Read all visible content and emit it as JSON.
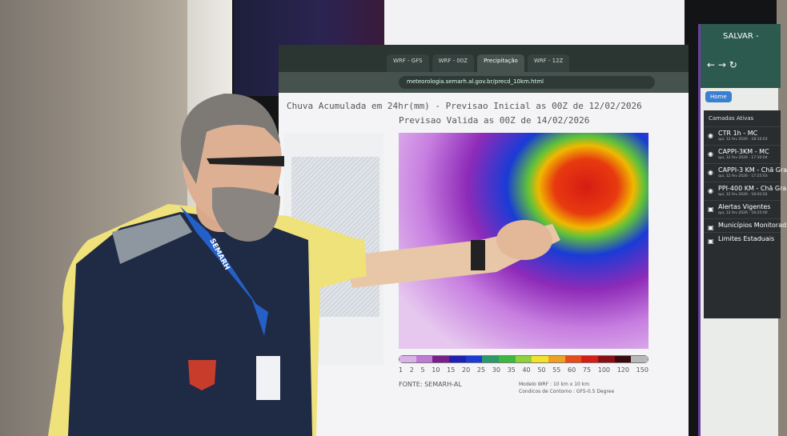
{
  "main_browser": {
    "tabs": [
      "WRF - GFS",
      "WRF - 00Z",
      "Precipitação",
      "WRF - 12Z"
    ],
    "url": "meteorologia.semarh.al.gov.br/precd_10km.html",
    "chart_title_line1": "Chuva Acumulada em 24hr(mm) - Previsao Inicial as 00Z de 12/02/2026",
    "chart_title_line2": "Previsao Valida as 00Z de 14/02/2026",
    "colorbar_ticks": [
      "1",
      "2",
      "5",
      "10",
      "15",
      "20",
      "25",
      "30",
      "35",
      "40",
      "50",
      "55",
      "60",
      "75",
      "100",
      "120",
      "150"
    ],
    "colorbar_colors": [
      "#d9b3e8",
      "#c07ad6",
      "#7a1f8a",
      "#1f1fb3",
      "#1a3bd6",
      "#2a9a6a",
      "#3cb83c",
      "#8fd13a",
      "#f2e22a",
      "#f0a020",
      "#e84a1a",
      "#d61c14",
      "#8a0f14",
      "#3a0a10",
      "#b8b8b8"
    ],
    "source": "FONTE: SEMARH-AL",
    "model_line1": "Modelo WRF : 10 km x 10 km",
    "model_line2": "Condicos de Contorno : GFS-0.5 Degree"
  },
  "right_browser": {
    "title": "SALVAR -",
    "home_button": "Home",
    "layers_header": "Camadas Ativas",
    "layers": [
      {
        "name": "CTR 1h - MC",
        "time": "qui, 12 fev 2026 - 18:10:03",
        "icon": "radar-icon"
      },
      {
        "name": "CAPPI-3KM - MC",
        "time": "qui, 12 fev 2026 - 17:30:04",
        "icon": "radar-icon"
      },
      {
        "name": "CAPPI-3 KM - Chã Gra",
        "time": "qui, 12 fev 2026 - 17:25:03",
        "icon": "radar-icon"
      },
      {
        "name": "PPI-400 KM - Chã Gra",
        "time": "qui, 12 fev 2026 - 18:02:02",
        "icon": "radar-icon"
      },
      {
        "name": "Alertas Vigentes",
        "time": "qui, 12 fev 2026 - 18:25:00",
        "icon": "image-icon"
      },
      {
        "name": "Municípios Monitorad",
        "time": "",
        "icon": "image-icon"
      },
      {
        "name": "Limites Estaduais",
        "time": "",
        "icon": "image-icon"
      }
    ]
  },
  "lanyard_text": "SEMARH"
}
